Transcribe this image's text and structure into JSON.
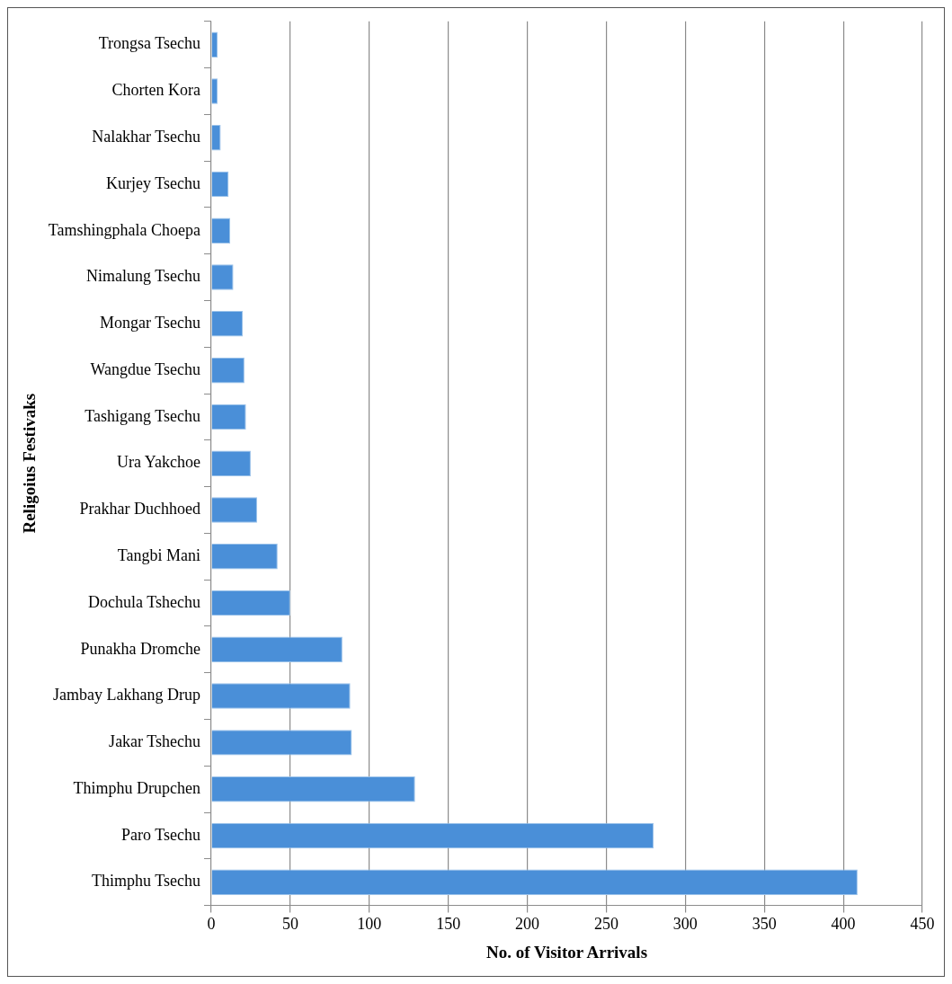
{
  "chart_data": {
    "type": "bar",
    "orientation": "horizontal",
    "xlabel": "No. of Visitor Arrivals",
    "ylabel": "Religoius Festivaks",
    "categories": [
      "Trongsa Tsechu",
      "Chorten Kora",
      "Nalakhar Tsechu",
      "Kurjey Tsechu",
      "Tamshingphala Choepa",
      "Nimalung Tsechu",
      "Mongar Tsechu",
      "Wangdue Tsechu",
      "Tashigang Tsechu",
      "Ura Yakchoe",
      "Prakhar Duchhoed",
      "Tangbi Mani",
      "Dochula Tshechu",
      "Punakha Dromche",
      "Jambay Lakhang Drup",
      "Jakar Tshechu",
      "Thimphu Drupchen",
      "Paro Tsechu",
      "Thimphu Tsechu"
    ],
    "values": [
      4,
      4,
      6,
      11,
      12,
      14,
      20,
      21,
      22,
      25,
      29,
      42,
      50,
      83,
      88,
      89,
      129,
      280,
      409
    ],
    "color": "#4a8fd8",
    "xlim": [
      0,
      450
    ],
    "xticks": [
      0,
      50,
      100,
      150,
      200,
      250,
      300,
      350,
      400,
      450
    ],
    "grid": "x",
    "legend": false
  }
}
